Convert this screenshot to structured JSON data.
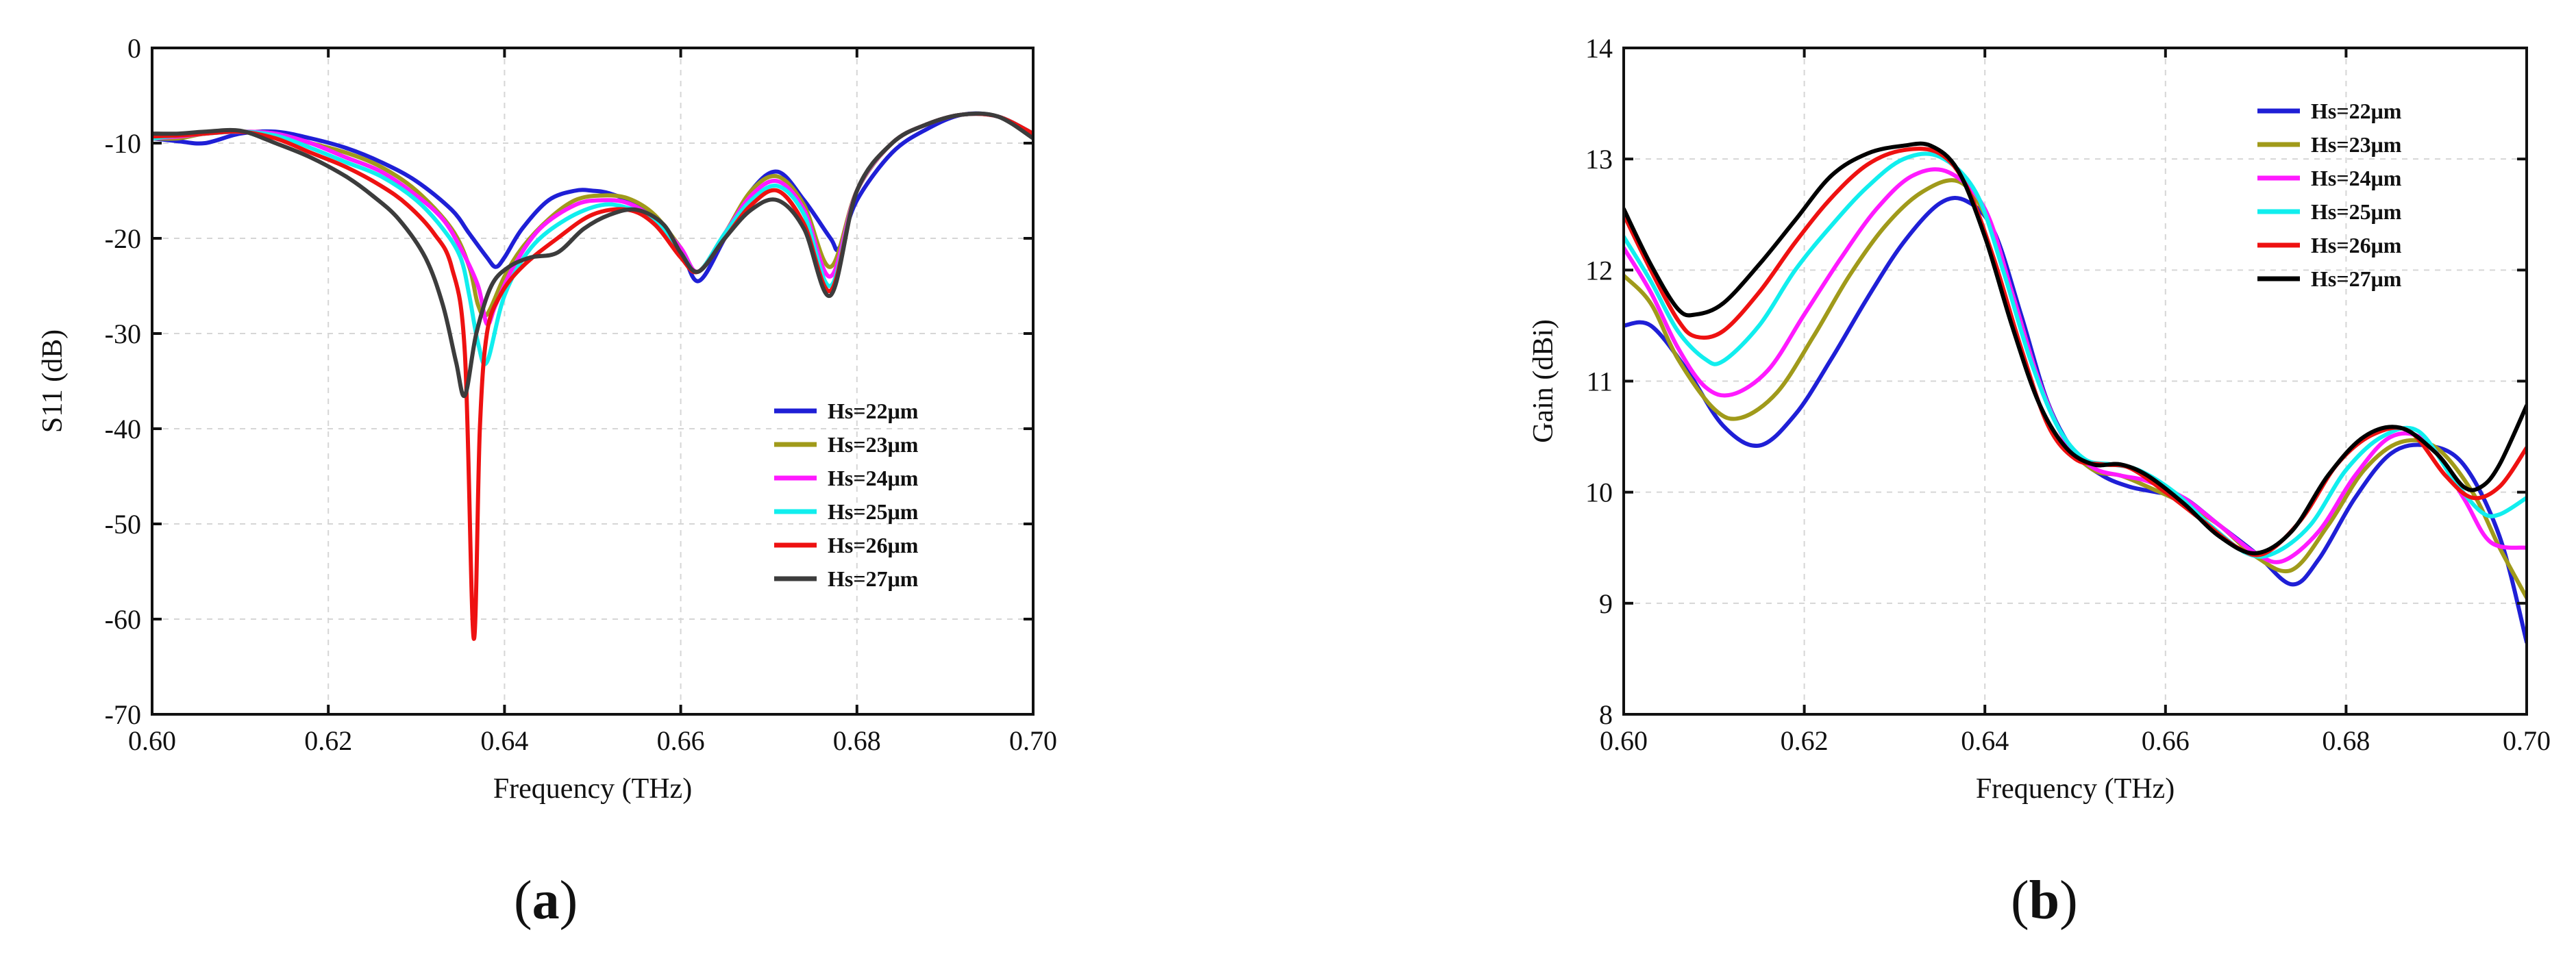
{
  "chart_data": [
    {
      "type": "line",
      "panel_label_open": "(",
      "panel_label_letter": "a",
      "panel_label_close": ")",
      "title": "",
      "xlabel": "Frequency (THz)",
      "ylabel": "S11 (dB)",
      "xlim": [
        0.6,
        0.7
      ],
      "ylim": [
        -70,
        0
      ],
      "xticks": [
        0.6,
        0.62,
        0.64,
        0.66,
        0.68,
        0.7
      ],
      "xtick_labels": [
        "0.60",
        "0.62",
        "0.64",
        "0.66",
        "0.68",
        "0.70"
      ],
      "yticks": [
        0,
        -10,
        -20,
        -30,
        -40,
        -50,
        -60,
        -70
      ],
      "ytick_labels": [
        "0",
        "-10",
        "-20",
        "-30",
        "-40",
        "-50",
        "-60",
        "-70"
      ],
      "grid": true,
      "legend_position": "lower-right",
      "series": [
        {
          "name": "Hs=22μm",
          "color": "#1f1fd6",
          "x": [
            0.6,
            0.603,
            0.606,
            0.61,
            0.614,
            0.618,
            0.622,
            0.626,
            0.63,
            0.634,
            0.636,
            0.638,
            0.639,
            0.64,
            0.642,
            0.645,
            0.648,
            0.65,
            0.652,
            0.655,
            0.658,
            0.66,
            0.662,
            0.665,
            0.668,
            0.671,
            0.674,
            0.677,
            0.678,
            0.68,
            0.684,
            0.688,
            0.692,
            0.696,
            0.7
          ],
          "y": [
            -9.5,
            -9.8,
            -10,
            -9,
            -8.8,
            -9.5,
            -10.5,
            -12,
            -14,
            -17,
            -19.5,
            -22,
            -23,
            -22,
            -19,
            -16,
            -15,
            -15,
            -15.3,
            -16.5,
            -19,
            -21,
            -24.5,
            -20,
            -15,
            -13,
            -16,
            -20,
            -21,
            -16,
            -11,
            -8.5,
            -7,
            -7.2,
            -9
          ]
        },
        {
          "name": "Hs=23μm",
          "color": "#a09a1a",
          "x": [
            0.6,
            0.603,
            0.606,
            0.61,
            0.614,
            0.618,
            0.622,
            0.626,
            0.63,
            0.634,
            0.636,
            0.637,
            0.638,
            0.64,
            0.642,
            0.645,
            0.648,
            0.651,
            0.654,
            0.657,
            0.66,
            0.662,
            0.665,
            0.668,
            0.671,
            0.674,
            0.677,
            0.68,
            0.684,
            0.688,
            0.692,
            0.696,
            0.7
          ],
          "y": [
            -9.5,
            -9.5,
            -9,
            -8.8,
            -9,
            -10,
            -11,
            -12.5,
            -15,
            -19,
            -23,
            -27,
            -28,
            -24,
            -21,
            -18,
            -16,
            -15.5,
            -15.8,
            -17.5,
            -21,
            -23.5,
            -19.5,
            -15,
            -13.5,
            -16.5,
            -23,
            -15,
            -10,
            -8,
            -7,
            -7.2,
            -9
          ]
        },
        {
          "name": "Hs=24μm",
          "color": "#ff1aff",
          "x": [
            0.6,
            0.603,
            0.606,
            0.61,
            0.614,
            0.618,
            0.622,
            0.626,
            0.63,
            0.633,
            0.635,
            0.637,
            0.638,
            0.639,
            0.641,
            0.644,
            0.648,
            0.651,
            0.654,
            0.657,
            0.66,
            0.662,
            0.665,
            0.668,
            0.671,
            0.674,
            0.677,
            0.68,
            0.684,
            0.688,
            0.692,
            0.696,
            0.7
          ],
          "y": [
            -9.5,
            -9.3,
            -9,
            -8.8,
            -9,
            -10,
            -11.5,
            -13,
            -15.5,
            -18,
            -21,
            -25,
            -29,
            -27,
            -23,
            -19,
            -16.5,
            -16,
            -16.3,
            -18,
            -21,
            -23.5,
            -19.5,
            -15.5,
            -14,
            -17,
            -24,
            -15,
            -10,
            -8,
            -7,
            -7.2,
            -9
          ]
        },
        {
          "name": "Hs=25μm",
          "color": "#11eeee",
          "x": [
            0.6,
            0.603,
            0.606,
            0.61,
            0.614,
            0.618,
            0.622,
            0.626,
            0.63,
            0.633,
            0.635,
            0.636,
            0.637,
            0.638,
            0.64,
            0.643,
            0.647,
            0.651,
            0.654,
            0.657,
            0.66,
            0.662,
            0.665,
            0.668,
            0.671,
            0.674,
            0.677,
            0.68,
            0.684,
            0.688,
            0.692,
            0.696,
            0.7
          ],
          "y": [
            -9.5,
            -9.2,
            -9,
            -8.8,
            -9.2,
            -10.5,
            -12,
            -13.5,
            -16,
            -19,
            -22,
            -26,
            -31,
            -33,
            -26,
            -21,
            -18,
            -16.5,
            -16.8,
            -18,
            -21.5,
            -23.5,
            -19.5,
            -16,
            -14.5,
            -17.5,
            -25,
            -15,
            -10,
            -8,
            -7,
            -7.2,
            -9
          ]
        },
        {
          "name": "Hs=26μm",
          "color": "#ee1111",
          "x": [
            0.6,
            0.603,
            0.606,
            0.61,
            0.614,
            0.618,
            0.622,
            0.626,
            0.629,
            0.632,
            0.634,
            0.6355,
            0.6365,
            0.6372,
            0.638,
            0.6395,
            0.642,
            0.646,
            0.65,
            0.654,
            0.657,
            0.66,
            0.662,
            0.665,
            0.668,
            0.671,
            0.674,
            0.677,
            0.68,
            0.684,
            0.688,
            0.692,
            0.696,
            0.7
          ],
          "y": [
            -9.3,
            -9.2,
            -9,
            -8.8,
            -9.5,
            -11,
            -12.5,
            -14.5,
            -16.5,
            -19.5,
            -23,
            -32,
            -62,
            -40,
            -30,
            -26,
            -23,
            -20,
            -17.5,
            -17,
            -18.5,
            -22,
            -23.5,
            -20,
            -16.5,
            -15,
            -18.5,
            -25.5,
            -15,
            -10,
            -8,
            -7,
            -7.2,
            -9
          ]
        },
        {
          "name": "Hs=27μm",
          "color": "#3c3c3c",
          "x": [
            0.6,
            0.603,
            0.606,
            0.61,
            0.614,
            0.618,
            0.622,
            0.625,
            0.628,
            0.631,
            0.633,
            0.6345,
            0.6355,
            0.6368,
            0.6385,
            0.6405,
            0.643,
            0.646,
            0.649,
            0.652,
            0.655,
            0.658,
            0.66,
            0.662,
            0.665,
            0.668,
            0.671,
            0.674,
            0.677,
            0.68,
            0.684,
            0.688,
            0.692,
            0.696,
            0.7
          ],
          "y": [
            -9,
            -9,
            -8.8,
            -8.7,
            -10,
            -11.5,
            -13.5,
            -15.5,
            -18,
            -22,
            -27,
            -33,
            -36.5,
            -30,
            -25,
            -23,
            -22,
            -21.5,
            -19,
            -17.5,
            -17,
            -18.5,
            -21.5,
            -23.5,
            -20,
            -17,
            -16,
            -19,
            -26,
            -15,
            -10,
            -8,
            -7,
            -7.2,
            -9.5
          ]
        }
      ]
    },
    {
      "type": "line",
      "panel_label_open": "(",
      "panel_label_letter": "b",
      "panel_label_close": ")",
      "title": "",
      "xlabel": "Frequency (THz)",
      "ylabel": "Gain (dBi)",
      "xlim": [
        0.6,
        0.7
      ],
      "ylim": [
        8,
        14
      ],
      "xticks": [
        0.6,
        0.62,
        0.64,
        0.66,
        0.68,
        0.7
      ],
      "xtick_labels": [
        "0.60",
        "0.62",
        "0.64",
        "0.66",
        "0.68",
        "0.70"
      ],
      "yticks": [
        8,
        9,
        10,
        11,
        12,
        13,
        14
      ],
      "ytick_labels": [
        "8",
        "9",
        "10",
        "11",
        "12",
        "13",
        "14"
      ],
      "grid": true,
      "legend_position": "top-right",
      "series": [
        {
          "name": "Hs=22μm",
          "color": "#1f1fd6",
          "x": [
            0.6,
            0.603,
            0.607,
            0.611,
            0.615,
            0.619,
            0.623,
            0.627,
            0.631,
            0.635,
            0.638,
            0.641,
            0.644,
            0.647,
            0.65,
            0.653,
            0.656,
            0.659,
            0.662,
            0.666,
            0.67,
            0.674,
            0.677,
            0.681,
            0.685,
            0.689,
            0.693,
            0.697,
            0.7
          ],
          "y": [
            11.5,
            11.5,
            11.1,
            10.6,
            10.42,
            10.7,
            11.2,
            11.75,
            12.25,
            12.6,
            12.62,
            12.35,
            11.6,
            10.8,
            10.35,
            10.15,
            10.05,
            10.0,
            9.95,
            9.7,
            9.45,
            9.17,
            9.4,
            9.95,
            10.35,
            10.42,
            10.25,
            9.6,
            8.65
          ]
        },
        {
          "name": "Hs=23μm",
          "color": "#a09a1a",
          "x": [
            0.6,
            0.603,
            0.606,
            0.61,
            0.613,
            0.617,
            0.621,
            0.625,
            0.629,
            0.633,
            0.637,
            0.64,
            0.643,
            0.646,
            0.649,
            0.652,
            0.655,
            0.658,
            0.662,
            0.666,
            0.67,
            0.674,
            0.678,
            0.682,
            0.686,
            0.69,
            0.694,
            0.697,
            0.7
          ],
          "y": [
            11.95,
            11.7,
            11.2,
            10.75,
            10.67,
            10.9,
            11.4,
            11.95,
            12.4,
            12.7,
            12.8,
            12.5,
            11.8,
            11.0,
            10.45,
            10.2,
            10.15,
            10.05,
            9.9,
            9.7,
            9.42,
            9.3,
            9.7,
            10.2,
            10.45,
            10.4,
            10.0,
            9.5,
            9.05
          ]
        },
        {
          "name": "Hs=24μm",
          "color": "#ff1aff",
          "x": [
            0.6,
            0.603,
            0.606,
            0.609,
            0.612,
            0.616,
            0.62,
            0.624,
            0.628,
            0.632,
            0.636,
            0.64,
            0.643,
            0.646,
            0.649,
            0.652,
            0.655,
            0.658,
            0.662,
            0.666,
            0.67,
            0.673,
            0.677,
            0.681,
            0.685,
            0.689,
            0.693,
            0.696,
            0.7
          ],
          "y": [
            12.2,
            11.8,
            11.3,
            10.95,
            10.88,
            11.1,
            11.6,
            12.1,
            12.55,
            12.85,
            12.88,
            12.55,
            11.8,
            11.0,
            10.45,
            10.22,
            10.15,
            10.1,
            9.95,
            9.7,
            9.45,
            9.38,
            9.65,
            10.15,
            10.5,
            10.45,
            9.95,
            9.55,
            9.5
          ]
        },
        {
          "name": "Hs=25μm",
          "color": "#11eeee",
          "x": [
            0.6,
            0.603,
            0.606,
            0.609,
            0.611,
            0.615,
            0.619,
            0.623,
            0.627,
            0.631,
            0.635,
            0.639,
            0.642,
            0.645,
            0.648,
            0.651,
            0.654,
            0.657,
            0.661,
            0.665,
            0.669,
            0.672,
            0.676,
            0.68,
            0.684,
            0.688,
            0.692,
            0.695,
            0.697,
            0.7
          ],
          "y": [
            12.3,
            11.9,
            11.45,
            11.2,
            11.18,
            11.5,
            12.0,
            12.4,
            12.75,
            13.0,
            13.02,
            12.7,
            12.0,
            11.2,
            10.6,
            10.3,
            10.25,
            10.2,
            10.0,
            9.7,
            9.45,
            9.45,
            9.7,
            10.2,
            10.5,
            10.55,
            10.1,
            9.82,
            9.8,
            9.95
          ]
        },
        {
          "name": "Hs=26μm",
          "color": "#ee1111",
          "x": [
            0.6,
            0.603,
            0.606,
            0.608,
            0.611,
            0.615,
            0.619,
            0.623,
            0.627,
            0.631,
            0.635,
            0.638,
            0.641,
            0.644,
            0.647,
            0.65,
            0.653,
            0.656,
            0.66,
            0.664,
            0.668,
            0.671,
            0.675,
            0.679,
            0.683,
            0.687,
            0.691,
            0.694,
            0.697,
            0.7
          ],
          "y": [
            12.5,
            12.0,
            11.55,
            11.4,
            11.45,
            11.8,
            12.25,
            12.65,
            12.95,
            13.08,
            13.05,
            12.75,
            12.1,
            11.3,
            10.6,
            10.3,
            10.25,
            10.22,
            10.0,
            9.75,
            9.5,
            9.45,
            9.75,
            10.25,
            10.52,
            10.55,
            10.15,
            9.95,
            10.05,
            10.4
          ]
        },
        {
          "name": "Hs=27μm",
          "color": "#000000",
          "x": [
            0.6,
            0.603,
            0.606,
            0.608,
            0.611,
            0.615,
            0.619,
            0.623,
            0.627,
            0.631,
            0.634,
            0.637,
            0.64,
            0.643,
            0.646,
            0.649,
            0.652,
            0.655,
            0.658,
            0.662,
            0.666,
            0.67,
            0.674,
            0.678,
            0.682,
            0.686,
            0.69,
            0.693,
            0.695,
            0.697,
            0.7
          ],
          "y": [
            12.55,
            12.05,
            11.65,
            11.6,
            11.7,
            12.05,
            12.45,
            12.85,
            13.05,
            13.12,
            13.12,
            12.9,
            12.3,
            11.5,
            10.8,
            10.4,
            10.25,
            10.25,
            10.15,
            9.9,
            9.6,
            9.45,
            9.65,
            10.15,
            10.5,
            10.58,
            10.35,
            10.05,
            10.05,
            10.25,
            10.78
          ]
        }
      ]
    }
  ]
}
